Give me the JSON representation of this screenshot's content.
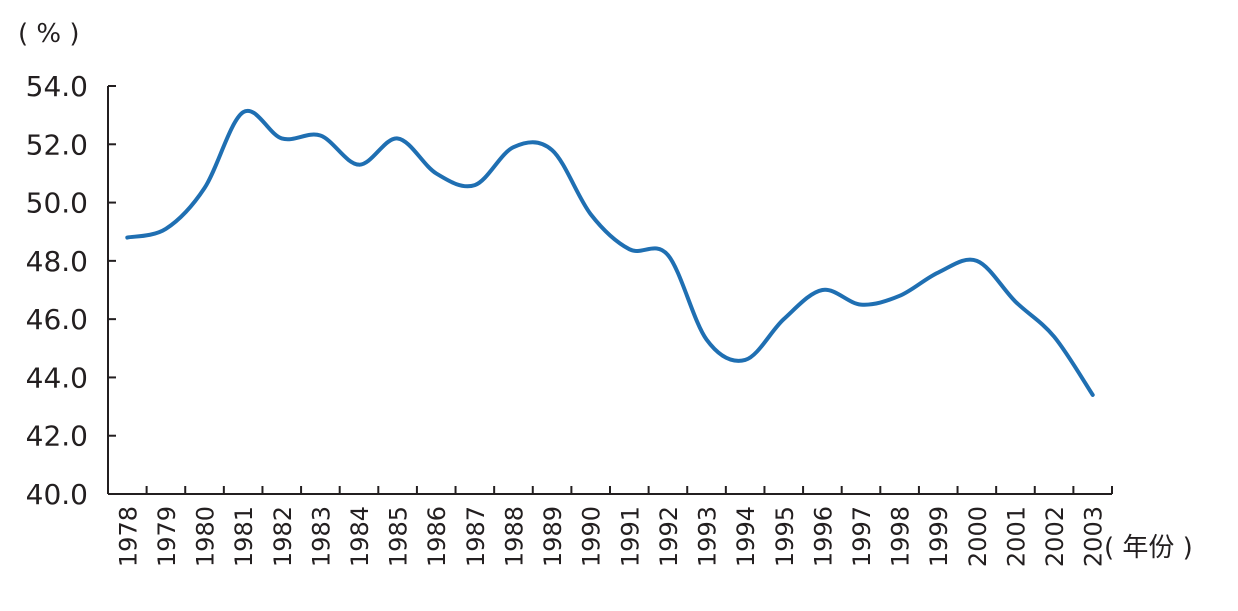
{
  "chart_data": {
    "type": "line",
    "title": "",
    "ylabel": "( % )",
    "xlabel": "( 年份 )",
    "ylim": [
      40,
      54
    ],
    "yticks": [
      "40.0",
      "42.0",
      "44.0",
      "46.0",
      "48.0",
      "50.0",
      "52.0",
      "54.0"
    ],
    "categories": [
      "1978",
      "1979",
      "1980",
      "1981",
      "1982",
      "1983",
      "1984",
      "1985",
      "1986",
      "1987",
      "1988",
      "1989",
      "1990",
      "1991",
      "1992",
      "1993",
      "1994",
      "1995",
      "1996",
      "1997",
      "1998",
      "1999",
      "2000",
      "2001",
      "2002",
      "2003"
    ],
    "series": [
      {
        "color": "#1f6fb2",
        "values": [
          48.8,
          49.1,
          50.5,
          53.1,
          52.2,
          52.3,
          51.3,
          52.2,
          51.0,
          50.6,
          51.9,
          51.8,
          49.6,
          48.4,
          48.2,
          45.3,
          44.6,
          46.0,
          47.0,
          46.5,
          46.8,
          47.6,
          48.0,
          46.6,
          45.4,
          43.4
        ]
      }
    ],
    "grid": false,
    "legend": "none"
  }
}
